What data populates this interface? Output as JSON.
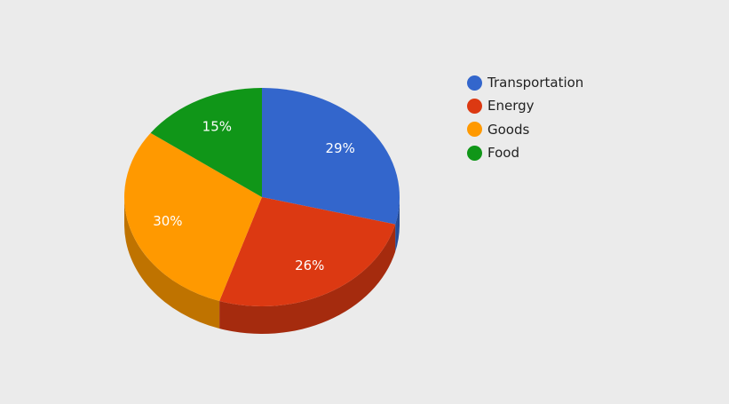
{
  "chart_data": {
    "type": "pie",
    "style": "3d",
    "categories": [
      "Transportation",
      "Energy",
      "Goods",
      "Food"
    ],
    "values": [
      29,
      26,
      30,
      15
    ],
    "labels": [
      "29%",
      "26%",
      "30%",
      "15%"
    ],
    "colors": [
      "#3366cc",
      "#dc3912",
      "#ff9900",
      "#109618"
    ],
    "legend_position": "right",
    "start_angle_deg": 0
  }
}
